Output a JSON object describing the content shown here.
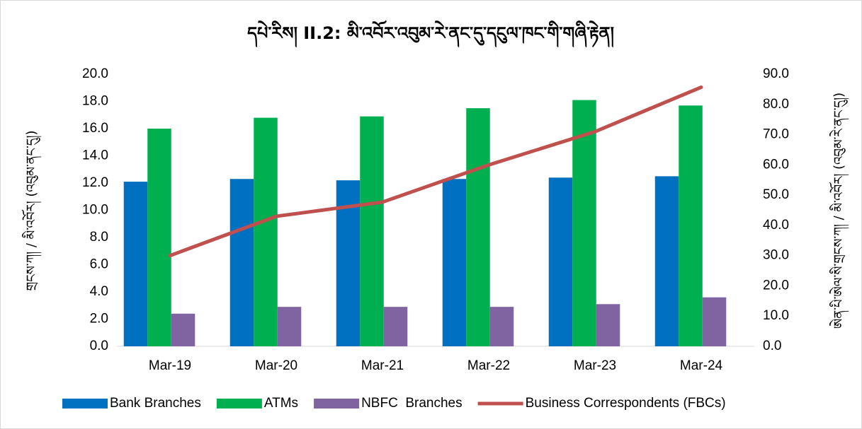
{
  "chart_data": {
    "type": "bar_line",
    "title": "དཔེ་རིས། II.2: མི་འབོར་འབུམ་རེ་ནང་དུ་དངུལ་ཁང་གི་གཞི་རྟེན།",
    "ylabel": "གྲངས་ཀ། / མི་འབོར། (འབུམ་ནང་དུ།)",
    "y2label": "ཨེན་པི་ཨེལ་སི་གྲངས་ཀ། / མི་འབོར། (འབུམ་རེ་ནང་དུ།)",
    "categories": [
      "Mar-19",
      "Mar-20",
      "Mar-21",
      "Mar-22",
      "Mar-23",
      "Mar-24"
    ],
    "series": [
      {
        "name": "Bank Branches",
        "color": "#0070c0",
        "type": "bar",
        "values": [
          12.1,
          12.3,
          12.2,
          12.3,
          12.4,
          12.5
        ]
      },
      {
        "name": "ATMs",
        "color": "#00b050",
        "type": "bar",
        "values": [
          16.0,
          16.8,
          16.9,
          17.5,
          18.1,
          17.7
        ]
      },
      {
        "name": "NBFC  Branches",
        "color": "#8064a2",
        "type": "bar",
        "values": [
          2.4,
          2.9,
          2.9,
          2.9,
          3.1,
          3.6
        ]
      },
      {
        "name": "Business Correspondents (FBCs)",
        "color": "#c0504d",
        "type": "line",
        "axis": "y2",
        "values": [
          30.0,
          43.0,
          47.7,
          60.0,
          71.0,
          85.7
        ]
      }
    ],
    "ylim": [
      0,
      20
    ],
    "yticks": [
      {
        "value": 0,
        "label": "0.0"
      },
      {
        "value": 2,
        "label": "2.0"
      },
      {
        "value": 4,
        "label": "4.0"
      },
      {
        "value": 6,
        "label": "6.0"
      },
      {
        "value": 8,
        "label": "8.0"
      },
      {
        "value": 10,
        "label": "10.0"
      },
      {
        "value": 12,
        "label": "12.0"
      },
      {
        "value": 14,
        "label": "14.0"
      },
      {
        "value": 16,
        "label": "16.0"
      },
      {
        "value": 18,
        "label": "18.0"
      },
      {
        "value": 20,
        "label": "20.0"
      }
    ],
    "y2lim": [
      0,
      90
    ],
    "y2ticks": [
      {
        "value": 0,
        "label": "0.0"
      },
      {
        "value": 10,
        "label": "10.0"
      },
      {
        "value": 20,
        "label": "20.0"
      },
      {
        "value": 30,
        "label": "30.0"
      },
      {
        "value": 40,
        "label": "40.0"
      },
      {
        "value": 50,
        "label": "50.0"
      },
      {
        "value": 60,
        "label": "60.0"
      },
      {
        "value": 70,
        "label": "70.0"
      },
      {
        "value": 80,
        "label": "80.0"
      },
      {
        "value": 90,
        "label": "90.0"
      }
    ],
    "legend": "bottom"
  }
}
